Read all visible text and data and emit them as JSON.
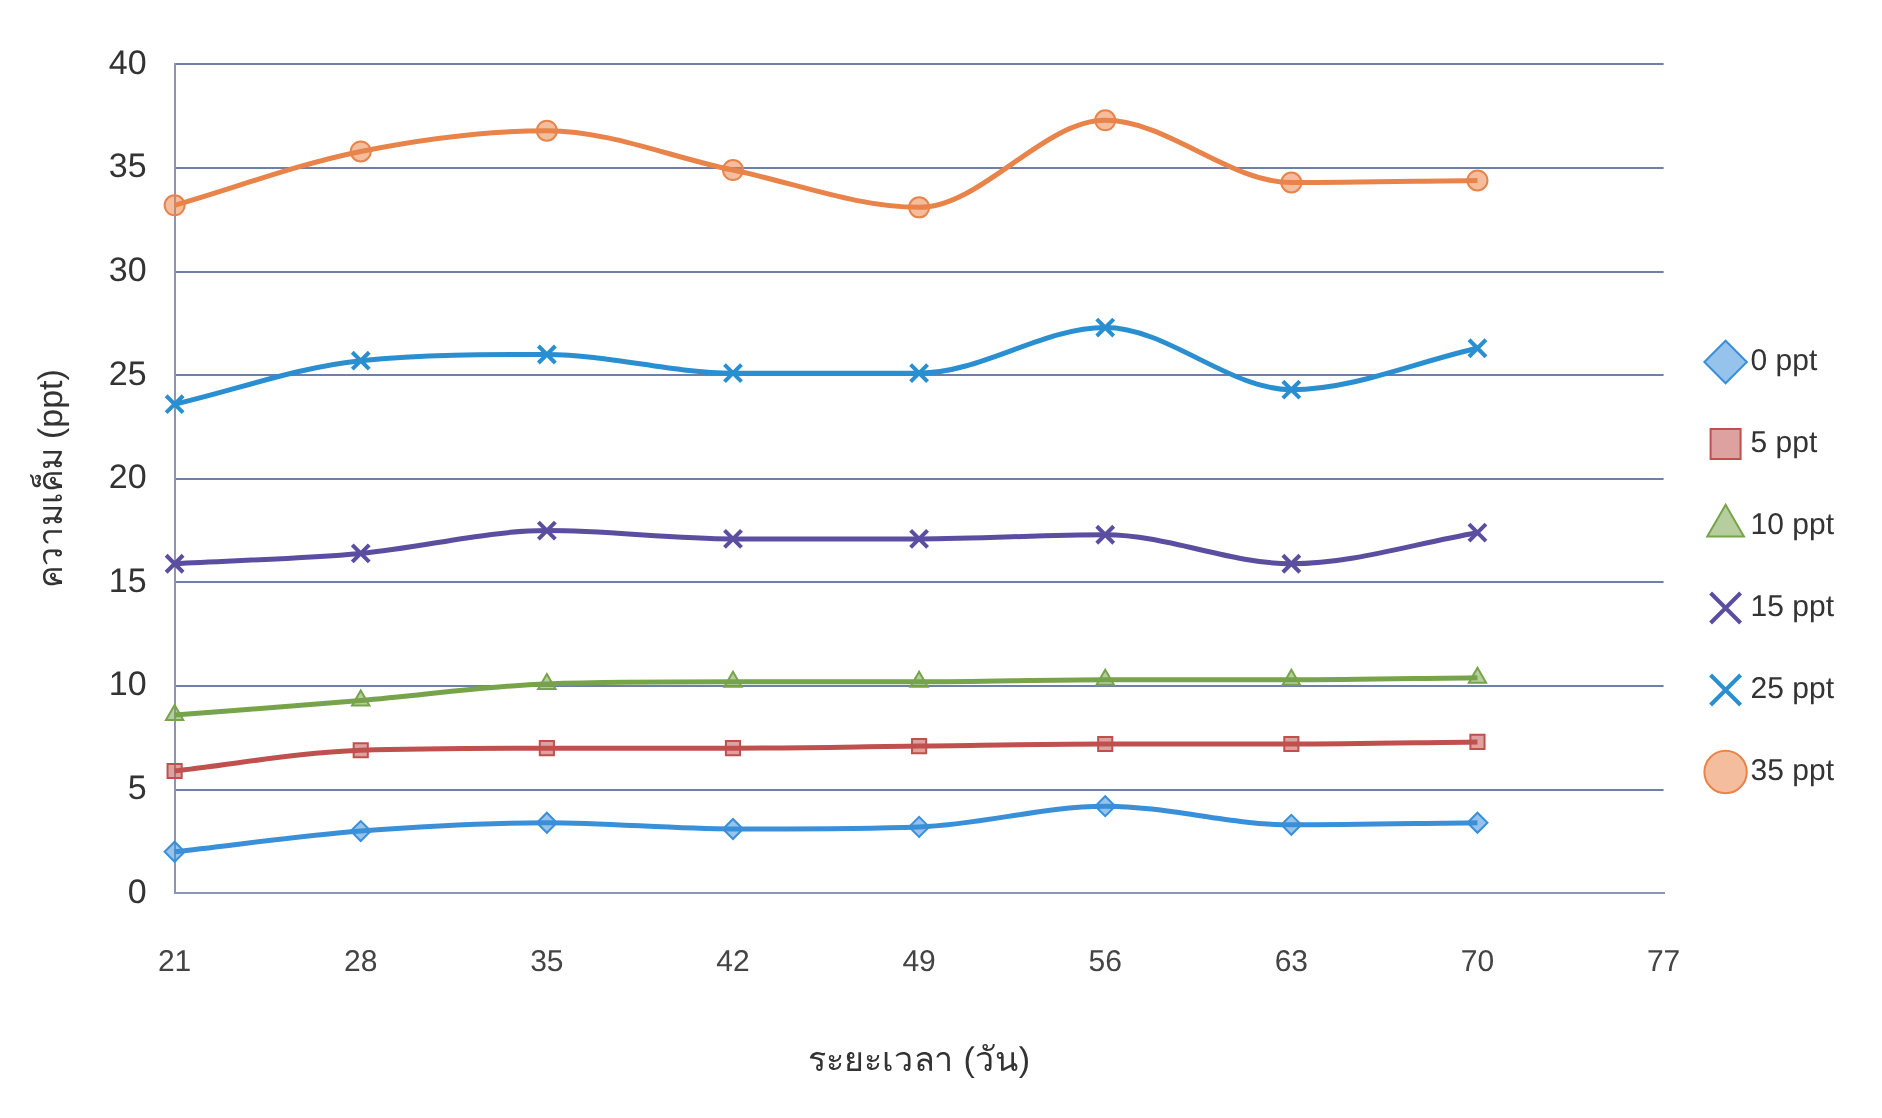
{
  "chart_data": {
    "type": "line",
    "xlabel": "ระยะเวลา (วัน)",
    "ylabel": "ความเค็ม (ppt)",
    "categories": [
      "21",
      "28",
      "35",
      "42",
      "49",
      "56",
      "63",
      "70",
      "77"
    ],
    "ylim": [
      0,
      40
    ],
    "yticks": [
      0,
      5,
      10,
      15,
      20,
      25,
      30,
      35,
      40
    ],
    "grid": "y",
    "legend": "right",
    "series": [
      {
        "name": "0 ppt",
        "color": "#3a8fd9",
        "marker": "diamond",
        "values": [
          2.0,
          3.0,
          3.4,
          3.1,
          3.2,
          4.2,
          3.3,
          3.4,
          null
        ]
      },
      {
        "name": "5 ppt",
        "color": "#c0504d",
        "marker": "square",
        "values": [
          5.9,
          6.9,
          7.0,
          7.0,
          7.1,
          7.2,
          7.2,
          7.3,
          null
        ]
      },
      {
        "name": "10 ppt",
        "color": "#77a34a",
        "marker": "triangle",
        "values": [
          8.6,
          9.3,
          10.1,
          10.2,
          10.2,
          10.3,
          10.3,
          10.4,
          null
        ]
      },
      {
        "name": "15 ppt",
        "color": "#5b4ea0",
        "marker": "cross",
        "values": [
          15.9,
          16.4,
          17.5,
          17.1,
          17.1,
          17.3,
          15.9,
          17.4,
          null
        ]
      },
      {
        "name": "25 ppt",
        "color": "#2a8fd0",
        "marker": "cross",
        "values": [
          23.6,
          25.7,
          26.0,
          25.1,
          25.1,
          27.3,
          24.3,
          26.3,
          null
        ]
      },
      {
        "name": "35 ppt",
        "color": "#e8834a",
        "marker": "circle",
        "values": [
          33.2,
          35.8,
          36.8,
          34.9,
          33.1,
          37.3,
          34.3,
          34.4,
          null
        ]
      }
    ]
  }
}
